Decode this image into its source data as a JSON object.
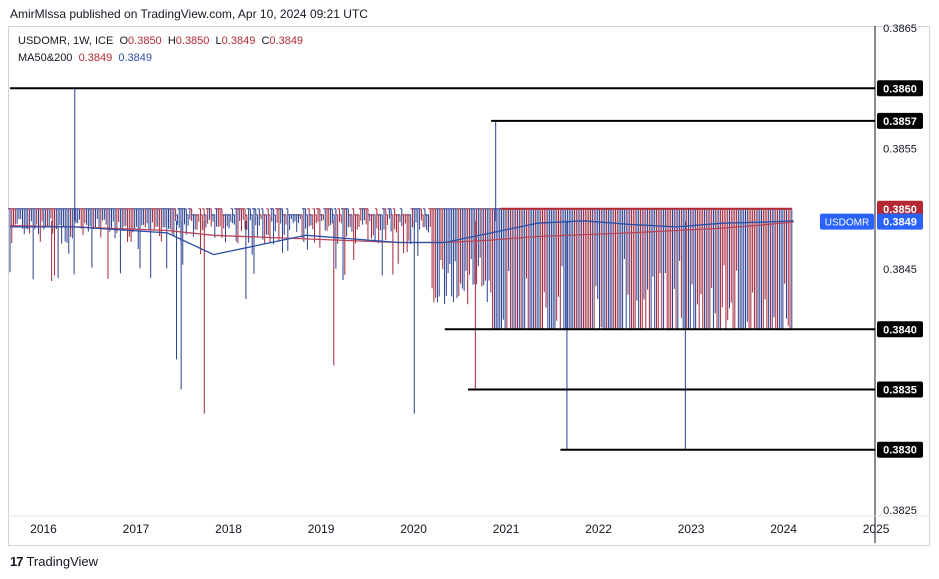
{
  "header": {
    "publisher_line": "AmirMlssa published on TradingView.com, Apr 10, 2024 09:21 UTC"
  },
  "legend": {
    "symbol": "USDOMR, 1W, ICE",
    "open_label": "O",
    "open": "0.3850",
    "high_label": "H",
    "high": "0.3850",
    "low_label": "L",
    "low": "0.3849",
    "close_label": "C",
    "close": "0.3849",
    "ma_label": "MA50&200",
    "ma50": "0.3849",
    "ma200": "0.3849"
  },
  "footer": {
    "brand": "TradingView",
    "brand_icon": "17"
  },
  "colors": {
    "up": "#2a3f8f",
    "down": "#a3263a",
    "ma50": "#2a4fa8",
    "ma200": "#b7455a",
    "resistance": "#b22833",
    "badge_blue": "#2962ff",
    "line": "#000000"
  },
  "chart_data": {
    "type": "bar",
    "title": "USDOMR, 1W, ICE",
    "timeframe": "1W",
    "ylim": [
      0.38245,
      0.38665
    ],
    "xlim": [
      2015.8,
      2025.15
    ],
    "y_ticks": [
      "0.3865",
      "0.3855",
      "0.3845",
      "0.3825"
    ],
    "x_ticks": [
      "2016",
      "2017",
      "2018",
      "2019",
      "2020",
      "2021",
      "2022",
      "2023",
      "2024",
      "2025"
    ],
    "levels": [
      {
        "value": 0.386,
        "label": "0.3860",
        "from": 2015.8,
        "to": 2025.15
      },
      {
        "value": 0.38573,
        "label": "0.3857",
        "from": 2021.0,
        "to": 2025.15
      },
      {
        "value": 0.385,
        "label": "0.3850",
        "from": 2021.1,
        "to": 2024.25,
        "color": "resistance"
      },
      {
        "value": 0.384,
        "label": "0.3840",
        "from": 2020.5,
        "to": 2025.15
      },
      {
        "value": 0.3835,
        "label": "0.3835",
        "from": 2020.75,
        "to": 2025.15
      },
      {
        "value": 0.383,
        "label": "0.3830",
        "from": 2021.75,
        "to": 2025.15
      }
    ],
    "price_badge": {
      "symbol": "USDOMR",
      "value": "0.3849"
    },
    "bars": {
      "start": 2015.8,
      "end": 2024.27,
      "count": 440,
      "base_high": 0.385,
      "base_low": 0.3848,
      "regimes": [
        {
          "from": 2015.8,
          "to": 2020.35,
          "high": 0.385,
          "low": 0.3847
        },
        {
          "from": 2020.35,
          "to": 2021.0,
          "high": 0.385,
          "low": 0.3842
        },
        {
          "from": 2021.0,
          "to": 2024.27,
          "high": 0.385,
          "low": 0.384
        }
      ],
      "spikes": [
        {
          "x": 2016.5,
          "value": 0.386
        },
        {
          "x": 2021.05,
          "value": 0.38573
        },
        {
          "x": 2017.65,
          "value": 0.3835
        },
        {
          "x": 2017.9,
          "value": 0.3833
        },
        {
          "x": 2020.17,
          "value": 0.3833
        },
        {
          "x": 2019.3,
          "value": 0.3837
        },
        {
          "x": 2020.83,
          "value": 0.3835
        },
        {
          "x": 2021.82,
          "value": 0.383
        },
        {
          "x": 2023.1,
          "value": 0.383
        },
        {
          "x": 2017.6,
          "value": 0.38375
        },
        {
          "x": 2016.25,
          "value": 0.3844
        },
        {
          "x": 2018.35,
          "value": 0.38425
        }
      ]
    },
    "ma50": [
      [
        2015.8,
        0.38485
      ],
      [
        2016.5,
        0.38485
      ],
      [
        2017.5,
        0.3848
      ],
      [
        2018.0,
        0.38462
      ],
      [
        2018.5,
        0.3847
      ],
      [
        2019.0,
        0.38478
      ],
      [
        2019.5,
        0.38475
      ],
      [
        2020.0,
        0.38472
      ],
      [
        2020.5,
        0.38472
      ],
      [
        2021.0,
        0.3848
      ],
      [
        2021.5,
        0.38488
      ],
      [
        2022.0,
        0.3849
      ],
      [
        2022.5,
        0.38487
      ],
      [
        2023.0,
        0.38485
      ],
      [
        2023.5,
        0.38488
      ],
      [
        2024.0,
        0.38489
      ],
      [
        2024.27,
        0.3849
      ]
    ],
    "ma200": [
      [
        2015.8,
        0.38486
      ],
      [
        2016.5,
        0.38485
      ],
      [
        2017.5,
        0.38482
      ],
      [
        2018.0,
        0.38478
      ],
      [
        2019.0,
        0.38475
      ],
      [
        2020.0,
        0.38472
      ],
      [
        2020.5,
        0.38472
      ],
      [
        2021.0,
        0.38474
      ],
      [
        2021.5,
        0.38477
      ],
      [
        2022.5,
        0.3848
      ],
      [
        2023.5,
        0.38484
      ],
      [
        2024.0,
        0.38487
      ],
      [
        2024.27,
        0.38489
      ]
    ]
  }
}
